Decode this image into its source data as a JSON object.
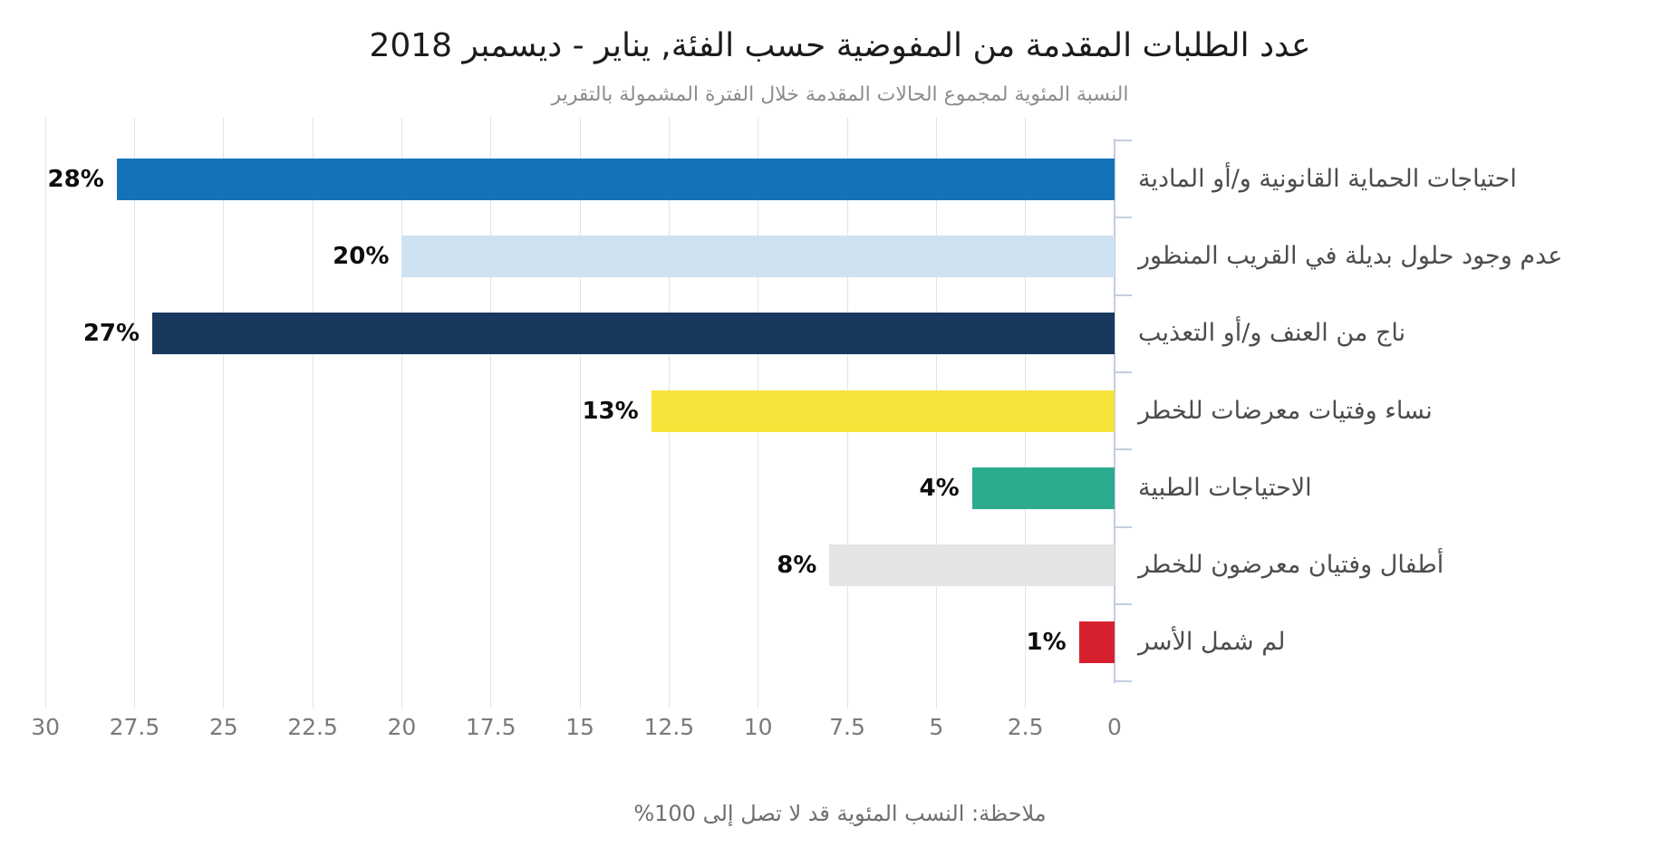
{
  "title": "عدد الطلبات المقدمة من المفوضية حسب الفئة, يناير - ديسمبر 2018",
  "subtitle": "النسبة المئوية لمجموع الحالات المقدمة خلال الفترة المشمولة بالتقرير",
  "note": "ملاحظة: النسب المئوية قد لا تصل إلى 100%",
  "chart_data": {
    "type": "bar",
    "orientation": "horizontal",
    "direction": "rtl",
    "title": "عدد الطلبات المقدمة من المفوضية حسب الفئة, يناير - ديسمبر 2018",
    "subtitle": "النسبة المئوية لمجموع الحالات المقدمة خلال الفترة المشمولة بالتقرير",
    "categories": [
      "احتياجات الحماية القانونية و/أو المادية",
      "عدم وجود حلول بديلة في القريب المنظور",
      "ناج من العنف و/أو التعذيب",
      "نساء وفتيات معرضات للخطر",
      "الاحتياجات الطبية",
      "أطفال وفتيان معرضون للخطر",
      "لم شمل الأسر"
    ],
    "values": [
      28,
      20,
      27,
      13,
      4,
      8,
      1
    ],
    "value_labels": [
      "28%",
      "20%",
      "27%",
      "13%",
      "4%",
      "8%",
      "1%"
    ],
    "bar_colors": [
      "#1473b8",
      "#cfe2f2",
      "#18395d",
      "#f8e33b",
      "#2cab8e",
      "#e4e4e4",
      "#d8212f"
    ],
    "x_ticks": [
      "30",
      "27.5",
      "25",
      "22.5",
      "20",
      "17.5",
      "15",
      "12.5",
      "10",
      "7.5",
      "5",
      "2.5",
      "0"
    ],
    "x_tick_values": [
      30,
      27.5,
      25,
      22.5,
      20,
      17.5,
      15,
      12.5,
      10,
      7.5,
      5,
      2.5,
      0
    ],
    "xlim": [
      0,
      30
    ],
    "grid": true,
    "legend": "none",
    "axis_color": "#c3cde0",
    "gridline_color": "#e3e3e3"
  }
}
